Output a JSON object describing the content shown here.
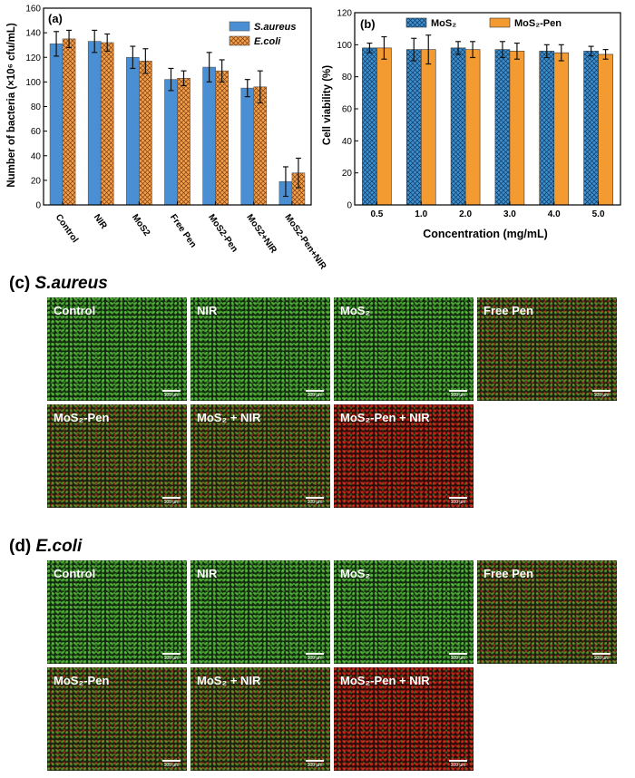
{
  "chart_data": [
    {
      "panel": "(a)",
      "type": "bar",
      "categories": [
        "Control",
        "NIR",
        "MoS2",
        "Free Pen",
        "MoS2-Pen",
        "MoS2+NIR",
        "MoS2-Pen+NIR"
      ],
      "series": [
        {
          "name": "S.aureus",
          "values": [
            131,
            133,
            120,
            102,
            112,
            95,
            19
          ],
          "errors": [
            10,
            9,
            9,
            9,
            12,
            7,
            12
          ],
          "color": "#4a8fd4",
          "pattern": "solid"
        },
        {
          "name": "E.coli",
          "values": [
            135,
            132,
            117,
            103,
            109,
            96,
            26
          ],
          "errors": [
            7,
            7,
            10,
            6,
            9,
            13,
            12
          ],
          "color": "#f5a04a",
          "pattern": "crosshatch"
        }
      ],
      "xlabel": "",
      "ylabel": "Number of bacteria (×10⁶ cfu/mL)",
      "ylim": [
        0,
        160
      ],
      "yticks": [
        0,
        20,
        40,
        60,
        80,
        100,
        120,
        140,
        160
      ],
      "legend_position": "top-right"
    },
    {
      "panel": "(b)",
      "type": "bar",
      "categories": [
        "0.5",
        "1.0",
        "2.0",
        "3.0",
        "4.0",
        "5.0"
      ],
      "series": [
        {
          "name": "MoS₂",
          "values": [
            98,
            97,
            98,
            97,
            96,
            96
          ],
          "errors": [
            3,
            7,
            4,
            5,
            4,
            3
          ],
          "color": "#3d8fce",
          "pattern": "crosshatch"
        },
        {
          "name": "MoS₂-Pen",
          "values": [
            98,
            97,
            97,
            96,
            95,
            94
          ],
          "errors": [
            7,
            9,
            5,
            5,
            5,
            3
          ],
          "color": "#f39a31",
          "pattern": "solid"
        }
      ],
      "xlabel": "Concentration (mg/mL)",
      "ylabel": "Cell viability (%)",
      "ylim": [
        0,
        120
      ],
      "yticks": [
        0,
        20,
        40,
        60,
        80,
        100,
        120
      ],
      "legend_position": "top"
    }
  ],
  "panel_labels": {
    "a": "(a)",
    "b": "(b)"
  },
  "sections": [
    {
      "letter": "(c)",
      "organism": "S.aureus",
      "images": [
        {
          "label": "Control",
          "scale": "100 µm",
          "texture": "green"
        },
        {
          "label": "NIR",
          "scale": "100 µm",
          "texture": "green"
        },
        {
          "label": "MoS₂",
          "scale": "100 µm",
          "texture": "green"
        },
        {
          "label": "Free Pen",
          "scale": "100 µm",
          "texture": "mixed"
        },
        {
          "label": "MoS₂-Pen",
          "scale": "100 µm",
          "texture": "mixed"
        },
        {
          "label": "MoS₂ + NIR",
          "scale": "100 µm",
          "texture": "mixed"
        },
        {
          "label": "MoS₂-Pen + NIR",
          "scale": "100 µm",
          "texture": "red"
        }
      ]
    },
    {
      "letter": "(d)",
      "organism": "E.coli",
      "images": [
        {
          "label": "Control",
          "scale": "100 µm",
          "texture": "green"
        },
        {
          "label": "NIR",
          "scale": "100 µm",
          "texture": "green"
        },
        {
          "label": "MoS₂",
          "scale": "100 µm",
          "texture": "green"
        },
        {
          "label": "Free Pen",
          "scale": "100 µm",
          "texture": "mixed"
        },
        {
          "label": "MoS₂-Pen",
          "scale": "100 µm",
          "texture": "mixed"
        },
        {
          "label": "MoS₂ + NIR",
          "scale": "100 µm",
          "texture": "mixed"
        },
        {
          "label": "MoS₂-Pen + NIR",
          "scale": "100 µm",
          "texture": "red"
        }
      ]
    }
  ]
}
